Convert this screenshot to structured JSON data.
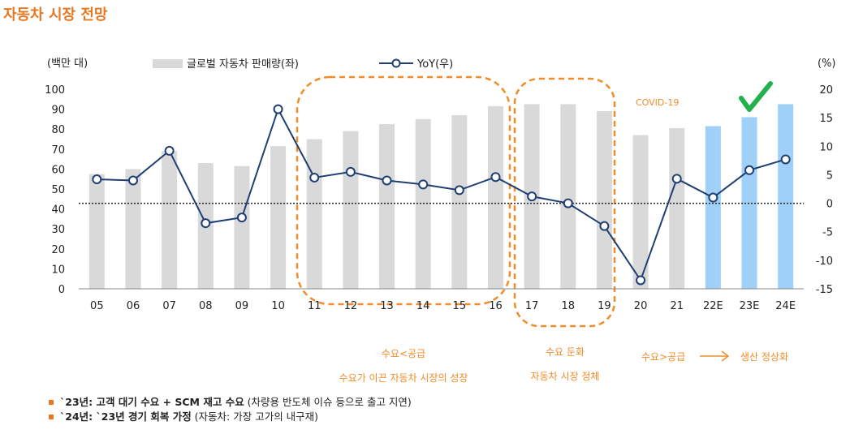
{
  "title": "자동차 시장 전망",
  "chart_data": {
    "type": "bar+line",
    "categories": [
      "05",
      "06",
      "07",
      "08",
      "09",
      "10",
      "11",
      "12",
      "13",
      "14",
      "15",
      "16",
      "17",
      "18",
      "19",
      "20",
      "21",
      "22E",
      "23E",
      "24E"
    ],
    "series": [
      {
        "name": "글로벌 자동차 판매량(좌)",
        "type": "bar",
        "axis": "left",
        "values": [
          57.5,
          60,
          69,
          63,
          61.5,
          71.5,
          75,
          79,
          82.5,
          85,
          87,
          91.5,
          92.5,
          92.5,
          89,
          77,
          80.5,
          81.5,
          86,
          92.5
        ],
        "colors": [
          "#d9d9d9",
          "#d9d9d9",
          "#d9d9d9",
          "#d9d9d9",
          "#d9d9d9",
          "#d9d9d9",
          "#d9d9d9",
          "#d9d9d9",
          "#d9d9d9",
          "#d9d9d9",
          "#d9d9d9",
          "#d9d9d9",
          "#d9d9d9",
          "#d9d9d9",
          "#d9d9d9",
          "#d9d9d9",
          "#d9d9d9",
          "#9fd0f7",
          "#9fd0f7",
          "#9fd0f7"
        ]
      },
      {
        "name": "YoY(우)",
        "type": "line",
        "axis": "right",
        "color": "#1f3f73",
        "values": [
          4.2,
          4.0,
          9.2,
          -3.5,
          -2.5,
          16.5,
          4.5,
          5.5,
          4.0,
          3.3,
          2.3,
          4.6,
          1.2,
          0.0,
          -4.0,
          -13.5,
          4.3,
          1.0,
          5.8,
          7.7
        ]
      }
    ],
    "ylabel_left": "(백만 대)",
    "ylabel_right": "(%)",
    "ylim_left": [
      0,
      100
    ],
    "ylim_right": [
      -15,
      20
    ],
    "yticks_left": [
      0,
      10,
      20,
      30,
      40,
      50,
      60,
      70,
      80,
      90,
      100
    ],
    "yticks_right": [
      -15,
      -10,
      -5,
      0,
      5,
      10,
      15,
      20
    ],
    "zero_line": "dotted",
    "legend": "top-center",
    "annotations": {
      "covid": "COVID-19",
      "group1_line1": "수요<공급",
      "group1_line2": "수요가 이끈 자동차 시장의 성장",
      "group2_line1": "수요 둔화",
      "group2_line2": "자동차 시장 정체",
      "group3_a": "수요>공급",
      "group3_b": "생산 정상화"
    },
    "check_mark_color": "#22b14c"
  },
  "notes": [
    {
      "bold": "`23년: 고객 대기 수요 + SCM 재고 수요",
      "normal": " (차량용 반도체 이슈 등으로 출고 지연)"
    },
    {
      "bold": "`24년: `23년 경기 회복 가정",
      "normal": " (자동차: 가장 고가의 내구재)"
    }
  ]
}
